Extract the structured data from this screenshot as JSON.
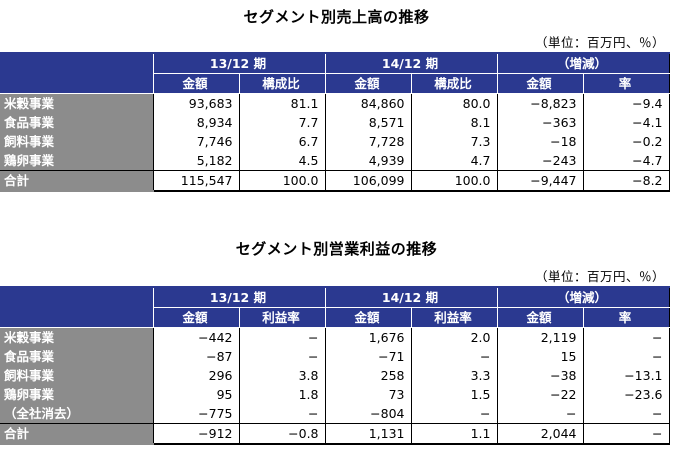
{
  "table1": {
    "title": "セグメント別売上高の推移",
    "unit": "（単位：百万円、％）",
    "headers": {
      "period1": "13/12 期",
      "period2": "14/12 期",
      "change": "（増減）",
      "sub": [
        "金額",
        "構成比",
        "金額",
        "構成比",
        "金額",
        "率"
      ]
    },
    "rows": [
      {
        "label": "米穀事業",
        "cells": [
          "93,683",
          "81.1",
          "84,860",
          "80.0",
          "−8,823",
          "−9.4"
        ]
      },
      {
        "label": "食品事業",
        "cells": [
          "8,934",
          "7.7",
          "8,571",
          "8.1",
          "−363",
          "−4.1"
        ]
      },
      {
        "label": "飼料事業",
        "cells": [
          "7,746",
          "6.7",
          "7,728",
          "7.3",
          "−18",
          "−0.2"
        ]
      },
      {
        "label": "鶏卵事業",
        "cells": [
          "5,182",
          "4.5",
          "4,939",
          "4.7",
          "−243",
          "−4.7"
        ]
      }
    ],
    "total": {
      "label": "合計",
      "cells": [
        "115,547",
        "100.0",
        "106,099",
        "100.0",
        "−9,447",
        "−8.2"
      ]
    }
  },
  "table2": {
    "title": "セグメント別営業利益の推移",
    "unit": "（単位：百万円、％）",
    "headers": {
      "period1": "13/12 期",
      "period2": "14/12 期",
      "change": "（増減）",
      "sub": [
        "金額",
        "利益率",
        "金額",
        "利益率",
        "金額",
        "率"
      ]
    },
    "rows": [
      {
        "label": "米穀事業",
        "cells": [
          "−442",
          "−",
          "1,676",
          "2.0",
          "2,119",
          "−"
        ]
      },
      {
        "label": "食品事業",
        "cells": [
          "−87",
          "−",
          "−71",
          "−",
          "15",
          "−"
        ]
      },
      {
        "label": "飼料事業",
        "cells": [
          "296",
          "3.8",
          "258",
          "3.3",
          "−38",
          "−13.1"
        ]
      },
      {
        "label": "鶏卵事業",
        "cells": [
          "95",
          "1.8",
          "73",
          "1.5",
          "−22",
          "−23.6"
        ]
      },
      {
        "label": "（全社消去）",
        "cells": [
          "−775",
          "−",
          "−804",
          "−",
          "−",
          "−"
        ]
      }
    ],
    "total": {
      "label": "合計",
      "cells": [
        "−912",
        "−0.8",
        "1,131",
        "1.1",
        "2,044",
        "−"
      ]
    }
  }
}
